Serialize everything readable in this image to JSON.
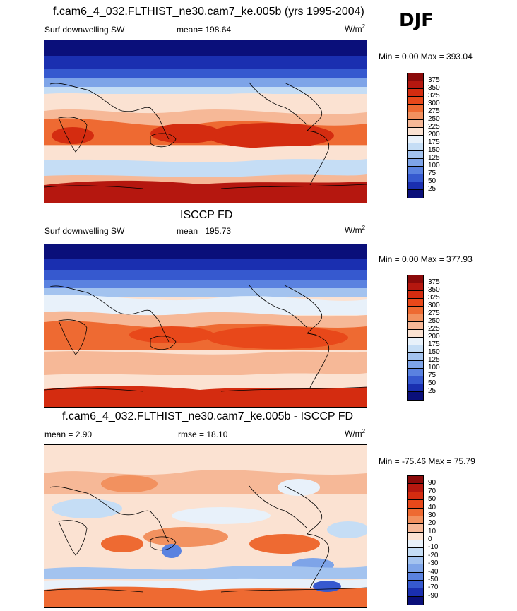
{
  "season": "DJF",
  "panels": [
    {
      "title": "f.cam6_4_032.FLTHIST_ne30.cam7_ke.005b (yrs 1995-2004)",
      "variable": "Surf downwelling SW",
      "stat_left": "",
      "stat_mid": "mean= 198.64",
      "units": "W/m",
      "units_sup": "2",
      "minmax": "Min =   0.00 Max = 393.04",
      "levels": [
        "375",
        "350",
        "325",
        "300",
        "275",
        "250",
        "225",
        "200",
        "175",
        "150",
        "125",
        "100",
        "75",
        "50",
        "25"
      ],
      "colors": [
        "#8b0a0a",
        "#b5170f",
        "#d42c10",
        "#e8481a",
        "#ee6a32",
        "#f2915f",
        "#f6b897",
        "#fbe2d2",
        "#e8f1fa",
        "#c5ddf5",
        "#a3c3ef",
        "#7ea4e8",
        "#5a82e0",
        "#3659cf",
        "#1a2fb0",
        "#0a0f7a"
      ]
    },
    {
      "title": "ISCCP FD",
      "variable": "Surf downwelling SW",
      "stat_left": "",
      "stat_mid": "mean= 195.73",
      "units": "W/m",
      "units_sup": "2",
      "minmax": "Min =   0.00 Max = 377.93",
      "levels": [
        "375",
        "350",
        "325",
        "300",
        "275",
        "250",
        "225",
        "200",
        "175",
        "150",
        "125",
        "100",
        "75",
        "50",
        "25"
      ],
      "colors": [
        "#8b0a0a",
        "#b5170f",
        "#d42c10",
        "#e8481a",
        "#ee6a32",
        "#f2915f",
        "#f6b897",
        "#fbe2d2",
        "#e8f1fa",
        "#c5ddf5",
        "#a3c3ef",
        "#7ea4e8",
        "#5a82e0",
        "#3659cf",
        "#1a2fb0",
        "#0a0f7a"
      ]
    },
    {
      "title": "f.cam6_4_032.FLTHIST_ne30.cam7_ke.005b - ISCCP FD",
      "variable": "",
      "stat_left": "mean =   2.90",
      "stat_mid": "rmse =  18.10",
      "units": "W/m",
      "units_sup": "2",
      "minmax": "Min = -75.46 Max =  75.79",
      "levels": [
        "90",
        "70",
        "50",
        "40",
        "30",
        "20",
        "10",
        "0",
        "-10",
        "-20",
        "-30",
        "-40",
        "-50",
        "-70",
        "-90"
      ],
      "colors": [
        "#8b0a0a",
        "#b5170f",
        "#d42c10",
        "#e8481a",
        "#ee6a32",
        "#f2915f",
        "#f6b897",
        "#fbe2d2",
        "#e8f1fa",
        "#c5ddf5",
        "#a3c3ef",
        "#7ea4e8",
        "#5a82e0",
        "#3659cf",
        "#1a2fb0",
        "#0a0f7a"
      ]
    }
  ]
}
